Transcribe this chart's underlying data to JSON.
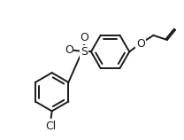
{
  "bg_color": "#ffffff",
  "line_color": "#1a1a1a",
  "line_width": 1.4,
  "text_color": "#1a1a1a",
  "cl_label": "Cl",
  "o_label": "O",
  "s_label": "S",
  "o1_label": "O",
  "o2_label": "O"
}
